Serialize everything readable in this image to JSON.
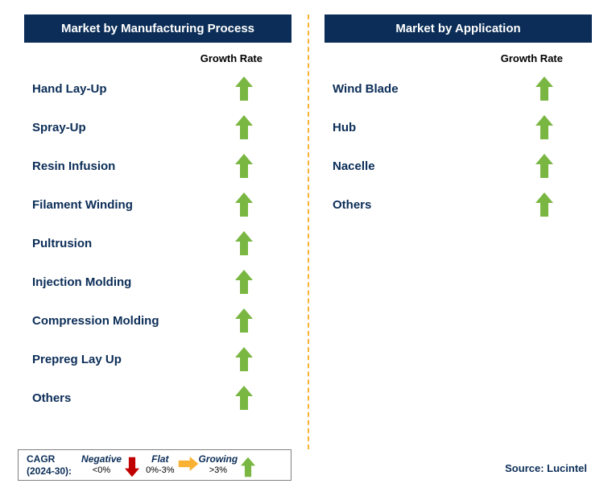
{
  "colors": {
    "header_bg": "#0b2d57",
    "header_text": "#ffffff",
    "label_text": "#0b2d57",
    "growth_text": "#000000",
    "divider": "#f9b233",
    "arrow_up": "#7ab742",
    "arrow_down": "#c00000",
    "arrow_right": "#f9b233",
    "legend_border": "#808080",
    "background": "#ffffff"
  },
  "growth_rate_label": "Growth Rate",
  "left": {
    "title": "Market by Manufacturing Process",
    "items": [
      {
        "label": "Hand Lay-Up",
        "trend": "up"
      },
      {
        "label": "Spray-Up",
        "trend": "up"
      },
      {
        "label": "Resin Infusion",
        "trend": "up"
      },
      {
        "label": "Filament Winding",
        "trend": "up"
      },
      {
        "label": "Pultrusion",
        "trend": "up"
      },
      {
        "label": "Injection Molding",
        "trend": "up"
      },
      {
        "label": "Compression Molding",
        "trend": "up"
      },
      {
        "label": "Prepreg Lay Up",
        "trend": "up"
      },
      {
        "label": "Others",
        "trend": "up"
      }
    ]
  },
  "right": {
    "title": "Market by Application",
    "items": [
      {
        "label": "Wind Blade",
        "trend": "up"
      },
      {
        "label": "Hub",
        "trend": "up"
      },
      {
        "label": "Nacelle",
        "trend": "up"
      },
      {
        "label": "Others",
        "trend": "up"
      }
    ]
  },
  "legend": {
    "cagr_line1": "CAGR",
    "cagr_line2": "(2024-30):",
    "items": [
      {
        "top": "Negative",
        "bot": "<0%",
        "trend": "down"
      },
      {
        "top": "Flat",
        "bot": "0%-3%",
        "trend": "right"
      },
      {
        "top": "Growing",
        "bot": ">3%",
        "trend": "up"
      }
    ]
  },
  "source": "Source: Lucintel"
}
